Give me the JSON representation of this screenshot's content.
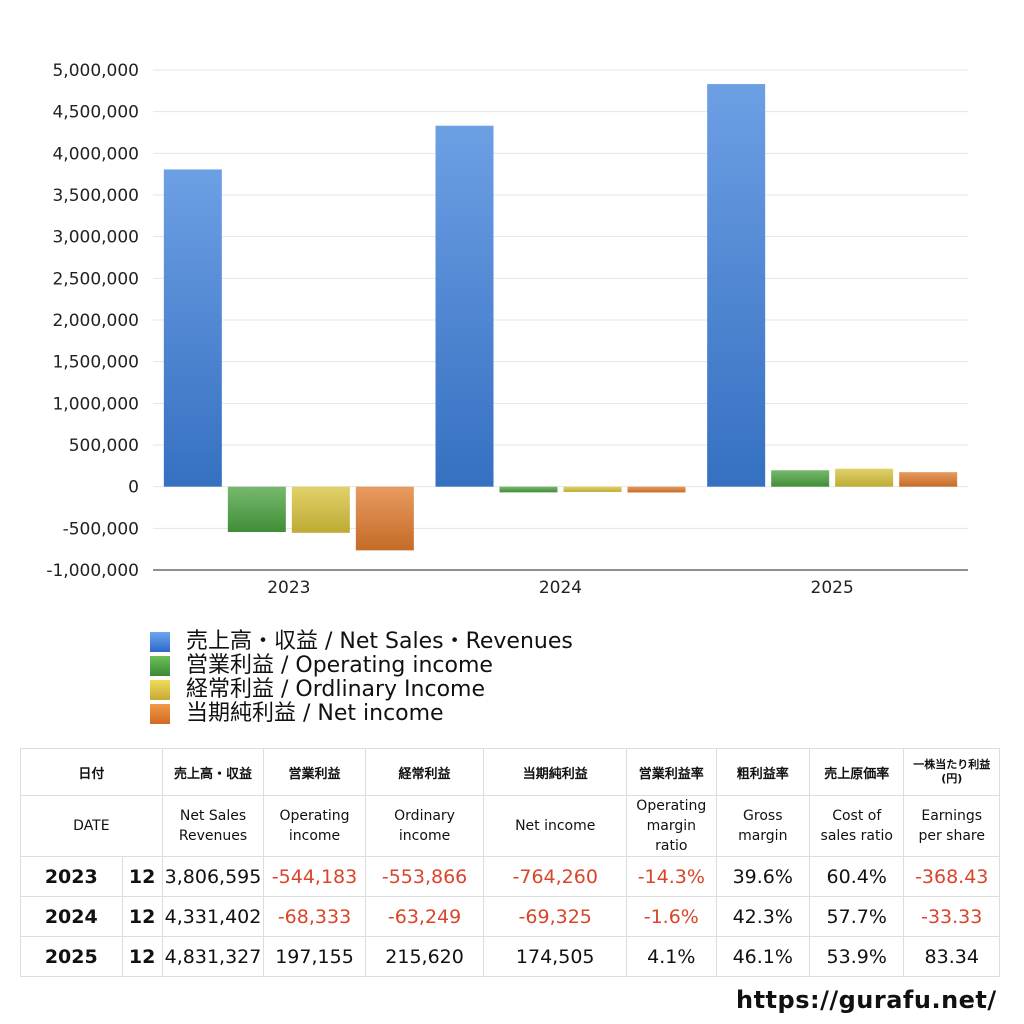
{
  "chart_data": {
    "type": "bar",
    "categories": [
      "2023",
      "2024",
      "2025"
    ],
    "series": [
      {
        "name": "売上高・収益 / Net Sales・Revenues",
        "values": [
          3806595,
          4331402,
          4831327
        ],
        "color": "#3c7fdb"
      },
      {
        "name": "営業利益 / Operating income",
        "values": [
          -544183,
          -68333,
          197155
        ],
        "color": "#4aa13e"
      },
      {
        "name": "経常利益 / Ordlinary Income",
        "values": [
          -553866,
          -63249,
          215620
        ],
        "color": "#d7c23a"
      },
      {
        "name": "当期純利益 / Net income",
        "values": [
          -764260,
          -69325,
          174505
        ],
        "color": "#e07a2c"
      }
    ],
    "ylim": [
      -1000000,
      5000000
    ],
    "ytick_step": 500000,
    "yticks": [
      "5,000,000",
      "4,500,000",
      "4,000,000",
      "3,500,000",
      "3,000,000",
      "2,500,000",
      "2,000,000",
      "1,500,000",
      "1,000,000",
      "500,000",
      "0",
      "-500,000",
      "-1,000,000"
    ],
    "grid": true,
    "legend_placement": "bottom-left",
    "title": "",
    "xlabel": "",
    "ylabel": ""
  },
  "table": {
    "headers_ja": [
      "日付",
      "売上高・収益",
      "営業利益",
      "経常利益",
      "当期純利益",
      "営業利益率",
      "粗利益率",
      "売上原価率",
      "一株当たり利益",
      "(円)"
    ],
    "headers_en": [
      [
        "DATE"
      ],
      [
        "Net Sales",
        "Revenues"
      ],
      [
        "Operating",
        "income"
      ],
      [
        "Ordinary",
        "income"
      ],
      [
        "Net income"
      ],
      [
        "Operating",
        "margin",
        "ratio"
      ],
      [
        "Gross",
        "margin"
      ],
      [
        "Cost of",
        "sales ratio"
      ],
      [
        "Earnings",
        "per share"
      ]
    ],
    "rows": [
      {
        "year": "2023",
        "month": "12",
        "net_sales": "3,806,595",
        "operating_income": "-544,183",
        "ordinary_income": "-553,866",
        "net_income": "-764,260",
        "operating_margin": "-14.3%",
        "gross_margin": "39.6%",
        "cost_of_sales_ratio": "60.4%",
        "eps": "-368.43"
      },
      {
        "year": "2024",
        "month": "12",
        "net_sales": "4,331,402",
        "operating_income": "-68,333",
        "ordinary_income": "-63,249",
        "net_income": "-69,325",
        "operating_margin": "-1.6%",
        "gross_margin": "42.3%",
        "cost_of_sales_ratio": "57.7%",
        "eps": "-33.33"
      },
      {
        "year": "2025",
        "month": "12",
        "net_sales": "4,831,327",
        "operating_income": "197,155",
        "ordinary_income": "215,620",
        "net_income": "174,505",
        "operating_margin": "4.1%",
        "gross_margin": "46.1%",
        "cost_of_sales_ratio": "53.9%",
        "eps": "83.34"
      }
    ]
  },
  "credit": "https://gurafu.net/"
}
